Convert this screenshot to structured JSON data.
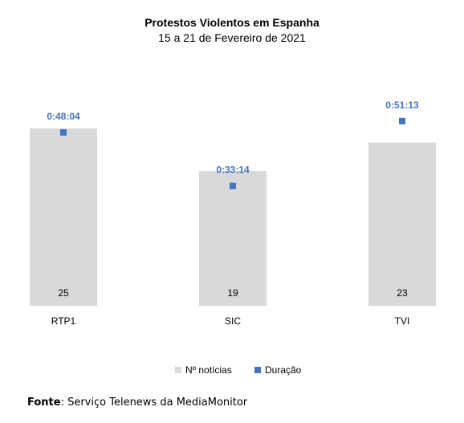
{
  "chart_data": {
    "type": "bar",
    "title": "Protestos Violentos em Espanha",
    "subtitle": "15 a 21 de Fevereiro de 2021",
    "categories": [
      "RTP1",
      "SIC",
      "TVI"
    ],
    "series": [
      {
        "name": "Nº notícias",
        "kind": "bar",
        "color": "#d9d9d9",
        "values": [
          25,
          19,
          23
        ],
        "labels": [
          "25",
          "19",
          "23"
        ]
      },
      {
        "name": "Duração",
        "kind": "marker",
        "color": "#4472c4",
        "values": [
          0.8011,
          0.5539,
          0.8536
        ],
        "labels": [
          "0:48:04",
          "0:33:14",
          "0:51:13"
        ]
      }
    ],
    "grid": false,
    "legend": "bottom"
  },
  "source": {
    "label": "Fonte",
    "text": ": Serviço Telenews da MediaMonitor"
  }
}
